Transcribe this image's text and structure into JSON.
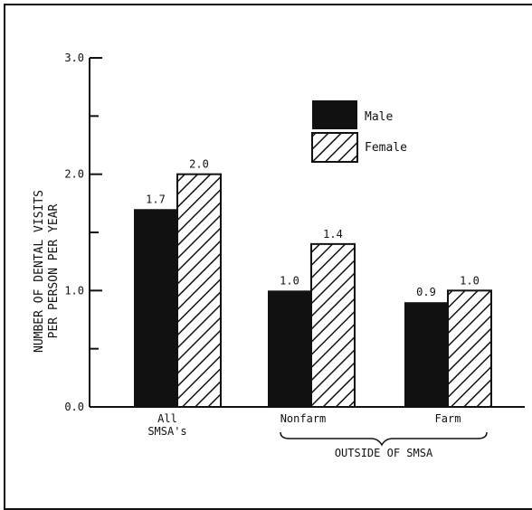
{
  "chart_data": {
    "type": "bar",
    "title": "",
    "ylabel_line1": "NUMBER OF DENTAL VISITS",
    "ylabel_line2": "PER PERSON PER YEAR",
    "xlabel": "",
    "ylim": [
      0,
      3
    ],
    "yticks": [
      "0.0",
      "1.0",
      "2.0",
      "3.0"
    ],
    "categories": [
      {
        "line1": "All",
        "line2": "SMSA's"
      },
      {
        "line1": "Nonfarm",
        "line2": ""
      },
      {
        "line1": "Farm",
        "line2": ""
      }
    ],
    "group_label": "OUTSIDE OF SMSA",
    "series": [
      {
        "name": "Male",
        "pattern": "solid",
        "values": [
          1.7,
          1.0,
          0.9
        ],
        "labels": [
          "1.7",
          "1.0",
          "0.9"
        ]
      },
      {
        "name": "Female",
        "pattern": "hatched",
        "values": [
          2.0,
          1.4,
          1.0
        ],
        "labels": [
          "2.0",
          "1.4",
          "1.0"
        ]
      }
    ],
    "grid": false,
    "legend_position": "top-right",
    "colors": {
      "male_fill": "#111111",
      "female_stroke": "#111111",
      "background": "#ffffff"
    }
  }
}
